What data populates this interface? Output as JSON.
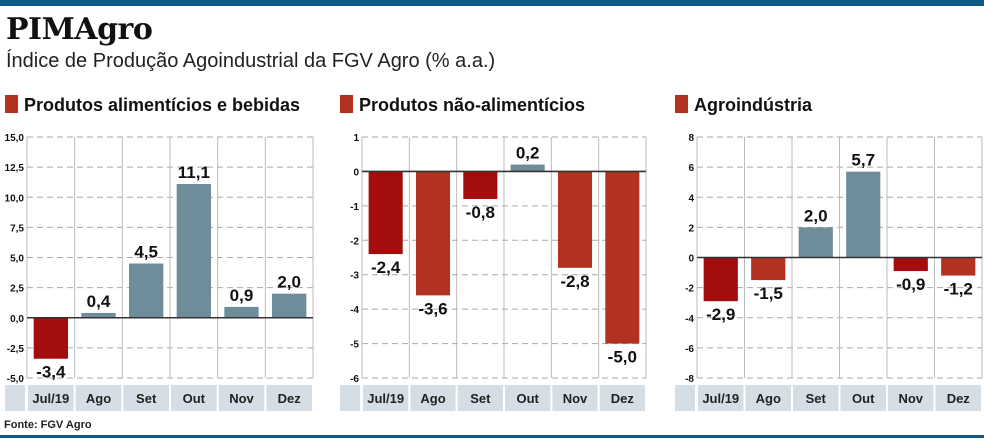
{
  "header": {
    "title": "PIMAgro",
    "subtitle": "Índice de Produção Agoindustrial da FGV Agro (% a.a.)"
  },
  "footer": {
    "source": "Fonte: FGV Agro"
  },
  "colors": {
    "brand": "#0f5a87",
    "negative_dark": "#a30d0d",
    "negative": "#b23222",
    "positive": "#6e8c99",
    "legend": "#b23222",
    "category_strip": "#d5dee6"
  },
  "chart_data": [
    {
      "type": "bar",
      "title": "Produtos alimentícios e bebidas",
      "categories": [
        "Jul/19",
        "Ago",
        "Set",
        "Out",
        "Nov",
        "Dez"
      ],
      "values": [
        -3.4,
        0.4,
        4.5,
        11.1,
        0.9,
        2.0
      ],
      "labels": [
        "-3,4",
        "0,4",
        "4,5",
        "11,1",
        "0,9",
        "2,0"
      ],
      "ylim": [
        -5,
        15
      ],
      "yticks": [
        "-5,0",
        "-2,5",
        "0,0",
        "2,5",
        "5,0",
        "7,5",
        "10,0",
        "12,5",
        "15,0"
      ],
      "ytick_values": [
        -5,
        -2.5,
        0,
        2.5,
        5,
        7.5,
        10,
        12.5,
        15
      ],
      "bar_colors": [
        "negative_dark",
        "positive",
        "positive",
        "positive",
        "positive",
        "positive"
      ],
      "grid": true
    },
    {
      "type": "bar",
      "title": "Produtos não-alimentícios",
      "categories": [
        "Jul/19",
        "Ago",
        "Set",
        "Out",
        "Nov",
        "Dez"
      ],
      "values": [
        -2.4,
        -3.6,
        -0.8,
        0.2,
        -2.8,
        -5.0
      ],
      "labels": [
        "-2,4",
        "-3,6",
        "-0,8",
        "0,2",
        "-2,8",
        "-5,0"
      ],
      "ylim": [
        -6,
        1
      ],
      "yticks": [
        "-6",
        "-5",
        "-4",
        "-3",
        "-2",
        "-1",
        "0",
        "1"
      ],
      "ytick_values": [
        -6,
        -5,
        -4,
        -3,
        -2,
        -1,
        0,
        1
      ],
      "bar_colors": [
        "negative_dark",
        "negative",
        "negative_dark",
        "positive",
        "negative",
        "negative"
      ],
      "grid": true
    },
    {
      "type": "bar",
      "title": "Agroindústria",
      "categories": [
        "Jul/19",
        "Ago",
        "Set",
        "Out",
        "Nov",
        "Dez"
      ],
      "values": [
        -2.9,
        -1.5,
        2.0,
        5.7,
        -0.9,
        -1.2
      ],
      "labels": [
        "-2,9",
        "-1,5",
        "2,0",
        "5,7",
        "-0,9",
        "-1,2"
      ],
      "ylim": [
        -8,
        8
      ],
      "yticks": [
        "-8",
        "-6",
        "-4",
        "-2",
        "0",
        "2",
        "4",
        "6",
        "8"
      ],
      "ytick_values": [
        -8,
        -6,
        -4,
        -2,
        0,
        2,
        4,
        6,
        8
      ],
      "bar_colors": [
        "negative_dark",
        "negative",
        "positive",
        "positive",
        "negative_dark",
        "negative"
      ],
      "grid": true
    }
  ]
}
